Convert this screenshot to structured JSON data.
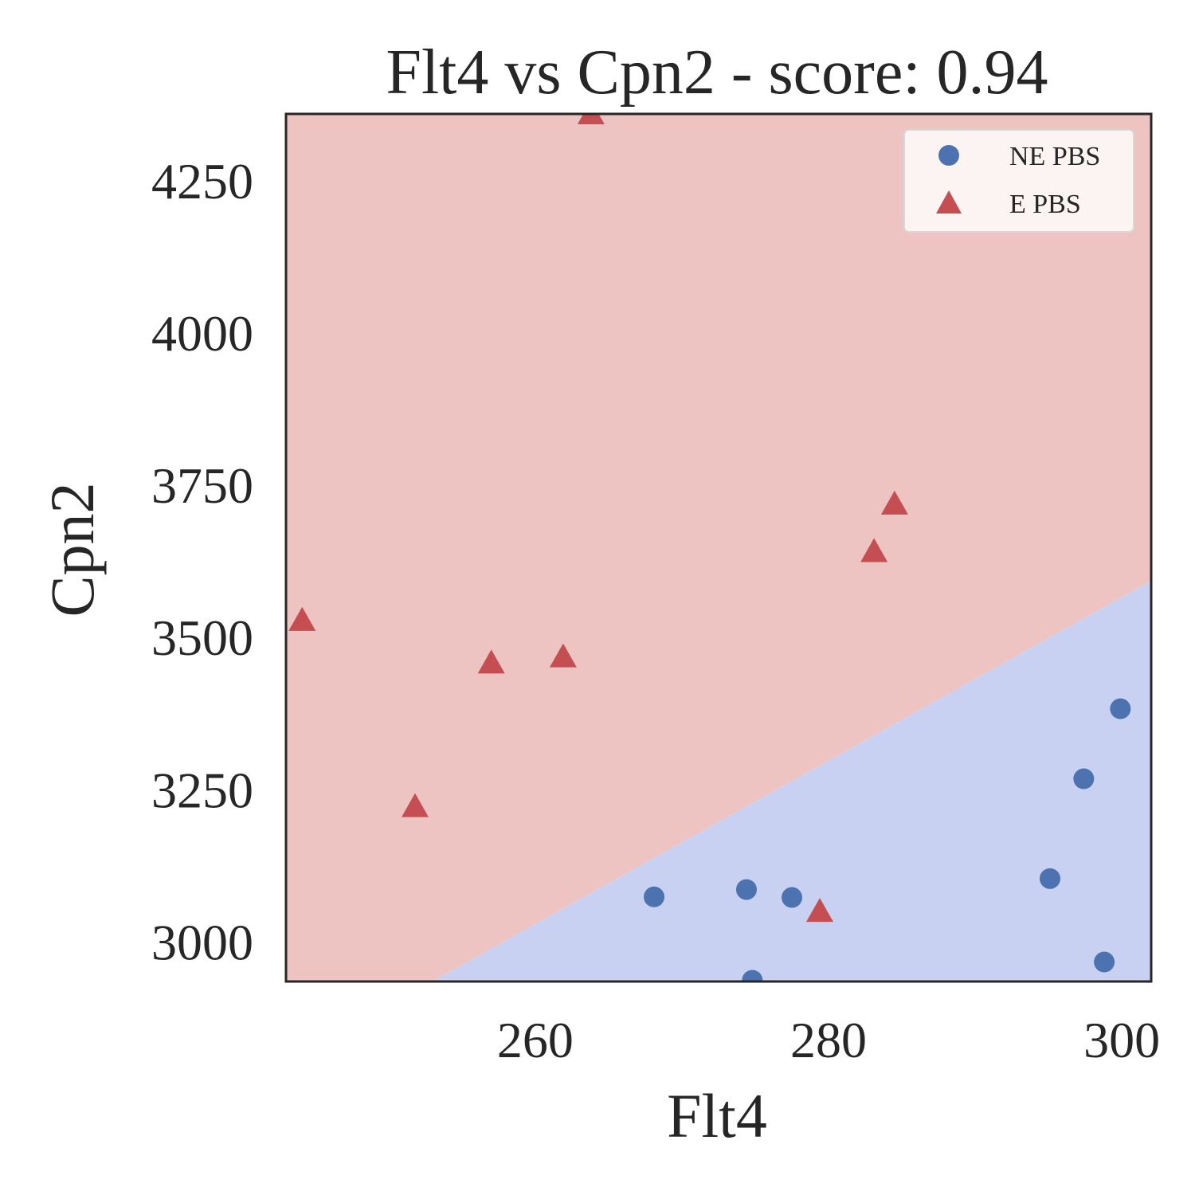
{
  "chart_data": {
    "type": "scatter",
    "title": "Flt4 vs Cpn2 - score: 0.94",
    "xlabel": "Flt4",
    "ylabel": "Cpn2",
    "xlim": [
      243,
      302
    ],
    "ylim": [
      2935,
      4360
    ],
    "xticks": [
      260,
      280,
      300
    ],
    "yticks": [
      3000,
      3250,
      3500,
      3750,
      4000,
      4250
    ],
    "grid": false,
    "legend_position": "top-right",
    "decision_regions": {
      "boundary": [
        [
          253,
          2935
        ],
        [
          302,
          3593
        ]
      ],
      "above_class": "E PBS",
      "below_class": "NE PBS",
      "above_color": "#eec4c3",
      "below_color": "#c9d1f2"
    },
    "series": [
      {
        "name": "NE PBS",
        "marker": "circle",
        "color": "#4c72b0",
        "points": [
          [
            268.1,
            3074
          ],
          [
            274.4,
            3086
          ],
          [
            277.5,
            3073
          ],
          [
            274.8,
            2937
          ],
          [
            295.1,
            3104
          ],
          [
            297.4,
            3268
          ],
          [
            299.9,
            3383
          ],
          [
            298.8,
            2967
          ]
        ]
      },
      {
        "name": "E PBS",
        "marker": "triangle",
        "color": "#c44e52",
        "points": [
          [
            244.1,
            3528
          ],
          [
            251.8,
            3222
          ],
          [
            257.0,
            3458
          ],
          [
            261.9,
            3468
          ],
          [
            263.8,
            4360
          ],
          [
            279.4,
            3050
          ],
          [
            283.1,
            3641
          ],
          [
            284.5,
            3719
          ]
        ]
      }
    ]
  }
}
